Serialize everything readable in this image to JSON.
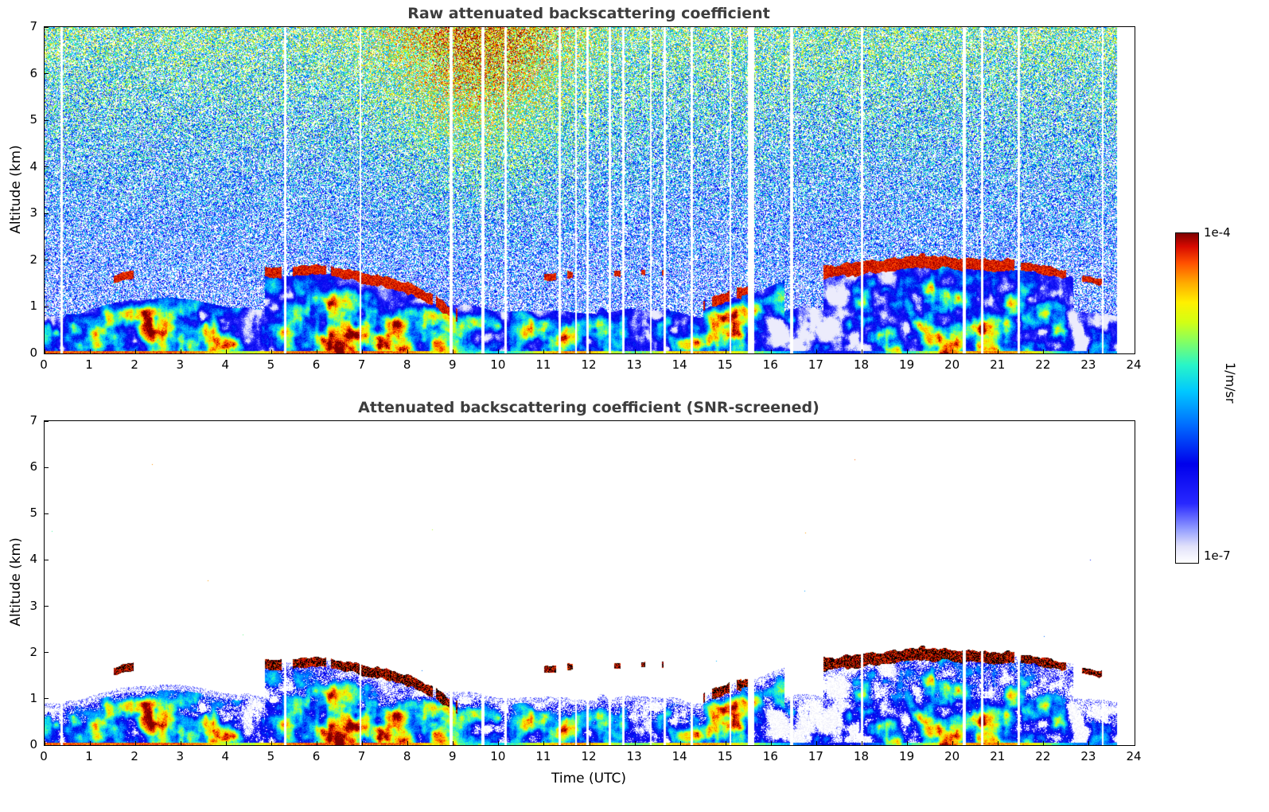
{
  "plots": [
    {
      "id": "raw",
      "title": "Raw attenuated backscattering coefficient"
    },
    {
      "id": "screened",
      "title": "Attenuated backscattering coefficient (SNR-screened)"
    }
  ],
  "axes": {
    "x": {
      "label": "Time (UTC)",
      "min": 0,
      "max": 24,
      "ticks": [
        0,
        1,
        2,
        3,
        4,
        5,
        6,
        7,
        8,
        9,
        10,
        11,
        12,
        13,
        14,
        15,
        16,
        17,
        18,
        19,
        20,
        21,
        22,
        23,
        24
      ]
    },
    "y": {
      "label": "Altitude (km)",
      "min": 0,
      "max": 7,
      "ticks": [
        0,
        1,
        2,
        3,
        4,
        5,
        6,
        7
      ]
    }
  },
  "colorbar": {
    "label": "1/m/sr",
    "top_label": "1e-4",
    "bottom_label": "1e-7",
    "scale": "log",
    "min_color": "#ffffff",
    "max_color": "#7d0000"
  },
  "chart_data": [
    {
      "type": "heatmap",
      "title": "Raw attenuated backscattering coefficient",
      "xlabel": "Time (UTC)",
      "ylabel": "Altitude (km)",
      "xlim": [
        0,
        24
      ],
      "ylim": [
        0,
        7
      ],
      "value_scale": "log",
      "value_range": [
        "1e-7",
        "1e-4"
      ],
      "units": "1/m/sr",
      "features": [
        "Dense speckle noise fills the frame above the boundary layer, cyan/green at low altitude grading to yellow/orange near 7 km",
        "Noise brightens to orange/red near the top of the frame around 09:00-10:30 UTC",
        "Aerosol boundary layer with red/yellow plumes below about 1-1.5 km throughout the day",
        "Intermittent dark-red cloud layer near 1.5-2.0 km: ~01:15-02:20, 05:00-09:00 (base descending to ~0.9 km), 10:30-13:40, 14:30-16:15, persistent deck 17:10-22:40",
        "Deep-blue low-signal pockets near the surface around 09-10 and 16.5-18.5 UTC",
        "Many narrow white vertical data gaps; data end near 23:40 UTC"
      ]
    },
    {
      "type": "heatmap",
      "title": "Attenuated backscattering coefficient (SNR-screened)",
      "xlabel": "Time (UTC)",
      "ylabel": "Altitude (km)",
      "xlim": [
        0,
        24
      ],
      "ylim": [
        0,
        7
      ],
      "value_scale": "log",
      "value_range": [
        "1e-7",
        "1e-4"
      ],
      "units": "1/m/sr",
      "features": [
        "Same scene with low-SNR noise removed: white background above the boundary layer",
        "Cloud layer cores saturate to black specks near 1.5-2 km",
        "Blue fringe outlines the top of the aerosol layer",
        "A few isolated colored specks remain above the layer (e.g. near 02:00 at 6.5 km)",
        "Same white vertical data gaps as the raw panel"
      ]
    }
  ],
  "render": {
    "data_end": 23.62,
    "gaps": [
      [
        0.38,
        0.06
      ],
      [
        5.3,
        0.04
      ],
      [
        6.95,
        0.04
      ],
      [
        8.95,
        0.06
      ],
      [
        9.65,
        0.06
      ],
      [
        10.15,
        0.05
      ],
      [
        11.35,
        0.05
      ],
      [
        11.7,
        0.04
      ],
      [
        11.95,
        0.05
      ],
      [
        12.45,
        0.05
      ],
      [
        12.75,
        0.05
      ],
      [
        13.35,
        0.05
      ],
      [
        13.65,
        0.05
      ],
      [
        14.25,
        0.05
      ],
      [
        15.1,
        0.05
      ],
      [
        15.55,
        0.14
      ],
      [
        16.45,
        0.06
      ],
      [
        18.0,
        0.05
      ],
      [
        20.25,
        0.06
      ],
      [
        20.65,
        0.06
      ],
      [
        21.45,
        0.06
      ],
      [
        23.3,
        0.04
      ]
    ],
    "clouds": [
      {
        "t": [
          1.25,
          2.35
        ],
        "h": [
          1.55,
          1.78
        ],
        "th": 0.18,
        "gap": 0.42,
        "freq": 5,
        "fill": false
      },
      {
        "t": [
          4.85,
          6.3
        ],
        "h": [
          1.75,
          1.8
        ],
        "th": 0.22,
        "gap": 0.3,
        "freq": 4,
        "fill": true
      },
      {
        "t": [
          6.3,
          8.05
        ],
        "h": [
          1.78,
          1.42
        ],
        "th": 0.24,
        "gap": 0.26,
        "freq": 4,
        "fill": true
      },
      {
        "t": [
          8.05,
          9.1
        ],
        "h": [
          1.42,
          0.82
        ],
        "th": 0.26,
        "gap": 0.22,
        "freq": 5,
        "fill": true
      },
      {
        "t": [
          10.45,
          11.8
        ],
        "h": [
          1.62,
          1.7
        ],
        "th": 0.16,
        "gap": 0.42,
        "freq": 6,
        "fill": false
      },
      {
        "t": [
          11.9,
          13.65
        ],
        "h": [
          1.7,
          1.74
        ],
        "th": 0.14,
        "gap": 0.48,
        "freq": 7,
        "fill": false
      },
      {
        "t": [
          14.5,
          15.35
        ],
        "h": [
          1.05,
          1.32
        ],
        "th": 0.24,
        "gap": 0.3,
        "freq": 5,
        "fill": true
      },
      {
        "t": [
          15.35,
          16.3
        ],
        "h": [
          1.32,
          1.62
        ],
        "th": 0.18,
        "gap": 0.42,
        "freq": 6,
        "fill": true
      },
      {
        "t": [
          17.15,
          19.4
        ],
        "h": [
          1.75,
          1.98
        ],
        "th": 0.28,
        "gap": 0.1,
        "freq": 3,
        "fill": true
      },
      {
        "t": [
          19.4,
          21.35
        ],
        "h": [
          1.98,
          1.88
        ],
        "th": 0.26,
        "gap": 0.12,
        "freq": 3,
        "fill": true
      },
      {
        "t": [
          21.35,
          22.65
        ],
        "h": [
          1.88,
          1.7
        ],
        "th": 0.2,
        "gap": 0.32,
        "freq": 5,
        "fill": true
      },
      {
        "t": [
          22.85,
          23.3
        ],
        "h": [
          1.62,
          1.55
        ],
        "th": 0.14,
        "gap": 0.4,
        "freq": 6,
        "fill": false
      }
    ],
    "hot_spots": [
      {
        "t": 2.2,
        "w": 1.3,
        "a": 0.18
      },
      {
        "t": 7.6,
        "w": 1.1,
        "a": 0.22
      },
      {
        "t": 9.5,
        "w": 0.9,
        "a": 0.3
      },
      {
        "t": 12.2,
        "w": 0.7,
        "a": 0.15
      },
      {
        "t": 15.0,
        "w": 0.7,
        "a": 0.22
      },
      {
        "t": 19.3,
        "w": 1.2,
        "a": 0.15
      },
      {
        "t": 21.2,
        "w": 0.9,
        "a": 0.15
      }
    ],
    "cool_spots": [
      {
        "t": 17.5,
        "w": 1.3,
        "a": 0.3
      },
      {
        "t": 9.8,
        "w": 0.8,
        "a": 0.18
      },
      {
        "t": 23.1,
        "w": 0.8,
        "a": 0.25
      },
      {
        "t": 13.0,
        "w": 0.6,
        "a": 0.12
      },
      {
        "t": 4.3,
        "w": 0.5,
        "a": 0.1
      }
    ],
    "noise_hot": {
      "t": 9.6,
      "st": 1.4,
      "alt": 6.8,
      "sa": 2.2,
      "a": 0.26
    },
    "colormap": [
      {
        "t": 0.0,
        "c": [
          255,
          255,
          255
        ]
      },
      {
        "t": 0.05,
        "c": [
          225,
          225,
          250
        ]
      },
      {
        "t": 0.1,
        "c": [
          150,
          160,
          255
        ]
      },
      {
        "t": 0.18,
        "c": [
          40,
          40,
          255
        ]
      },
      {
        "t": 0.3,
        "c": [
          0,
          0,
          235
        ]
      },
      {
        "t": 0.42,
        "c": [
          0,
          110,
          255
        ]
      },
      {
        "t": 0.52,
        "c": [
          0,
          200,
          255
        ]
      },
      {
        "t": 0.6,
        "c": [
          40,
          245,
          200
        ]
      },
      {
        "t": 0.67,
        "c": [
          130,
          255,
          100
        ]
      },
      {
        "t": 0.73,
        "c": [
          210,
          255,
          20
        ]
      },
      {
        "t": 0.79,
        "c": [
          255,
          240,
          0
        ]
      },
      {
        "t": 0.85,
        "c": [
          255,
          170,
          0
        ]
      },
      {
        "t": 0.91,
        "c": [
          255,
          80,
          0
        ]
      },
      {
        "t": 0.96,
        "c": [
          215,
          10,
          0
        ]
      },
      {
        "t": 1.0,
        "c": [
          125,
          0,
          0
        ]
      }
    ]
  }
}
